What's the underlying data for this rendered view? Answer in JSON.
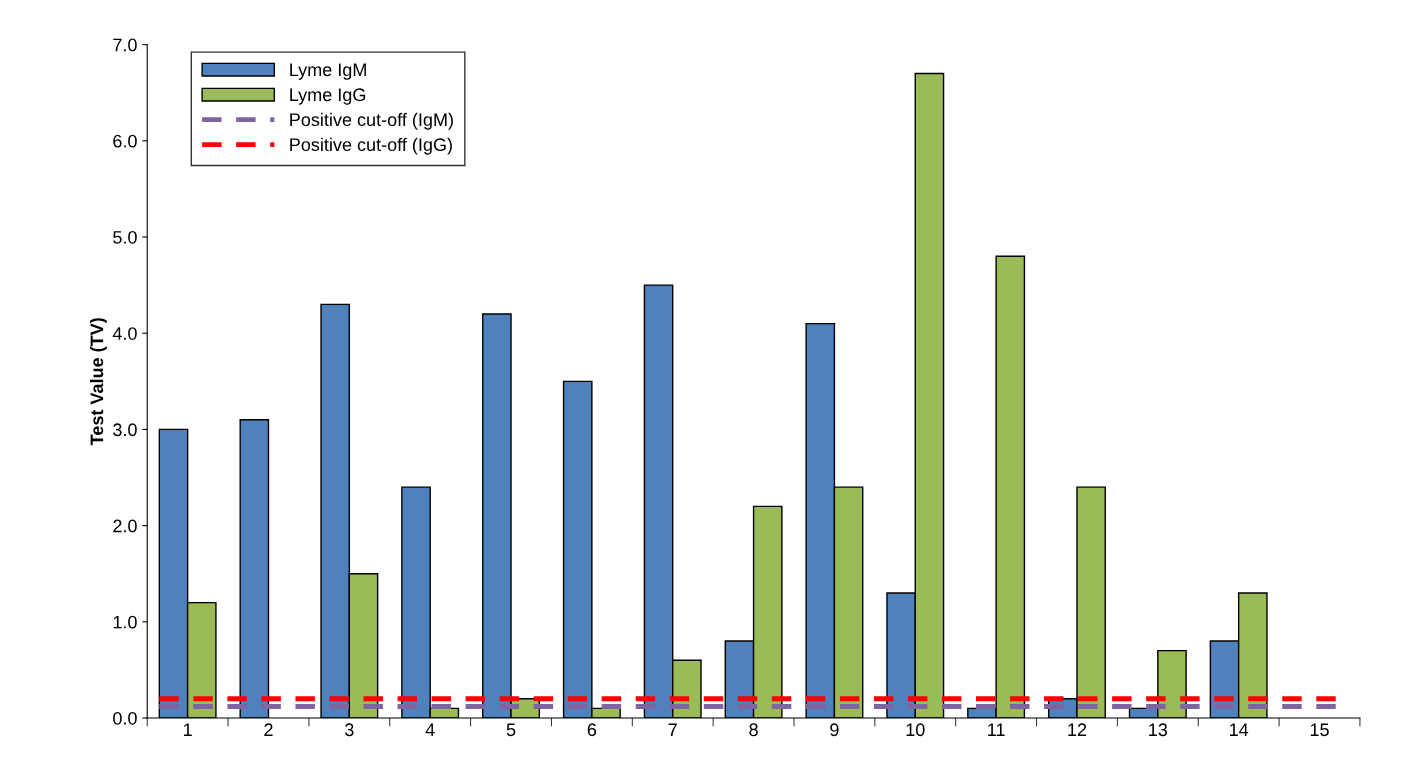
{
  "chart_data": {
    "type": "bar",
    "ylabel": "Test Value (TV)",
    "categories": [
      "1",
      "2",
      "3",
      "4",
      "5",
      "6",
      "7",
      "8",
      "9",
      "10",
      "11",
      "12",
      "13",
      "14",
      "15"
    ],
    "series": [
      {
        "name": "Lyme IgM",
        "color": "#4f81bd",
        "values": [
          3.0,
          3.1,
          4.3,
          2.4,
          4.2,
          3.5,
          4.5,
          0.8,
          4.1,
          1.3,
          0.1,
          0.2,
          0.1,
          0.8,
          null
        ]
      },
      {
        "name": "Lyme IgG",
        "color": "#9bbb59",
        "values": [
          1.2,
          null,
          1.5,
          0.1,
          0.2,
          0.1,
          0.6,
          2.2,
          2.4,
          6.7,
          4.8,
          2.4,
          0.7,
          1.3,
          null
        ]
      }
    ],
    "ref_lines": [
      {
        "axis": "y",
        "value": 0.12,
        "label": "Positive cut-off (IgM)",
        "color": "#8064a2",
        "line_style": "dashed"
      },
      {
        "axis": "y",
        "value": 0.2,
        "label": "Positive cut-off (IgG)",
        "color": "#ff0000",
        "line_style": "dashed"
      }
    ],
    "ylim": [
      0,
      7
    ],
    "yticks": [
      {
        "value": 0,
        "label": "0.0"
      },
      {
        "value": 1,
        "label": "1.0"
      },
      {
        "value": 2,
        "label": "2.0"
      },
      {
        "value": 3,
        "label": "3.0"
      },
      {
        "value": 4,
        "label": "4.0"
      },
      {
        "value": 5,
        "label": "5.0"
      },
      {
        "value": 6,
        "label": "6.0"
      },
      {
        "value": 7,
        "label": "7.0"
      }
    ],
    "grid": false,
    "legend": "top left"
  }
}
